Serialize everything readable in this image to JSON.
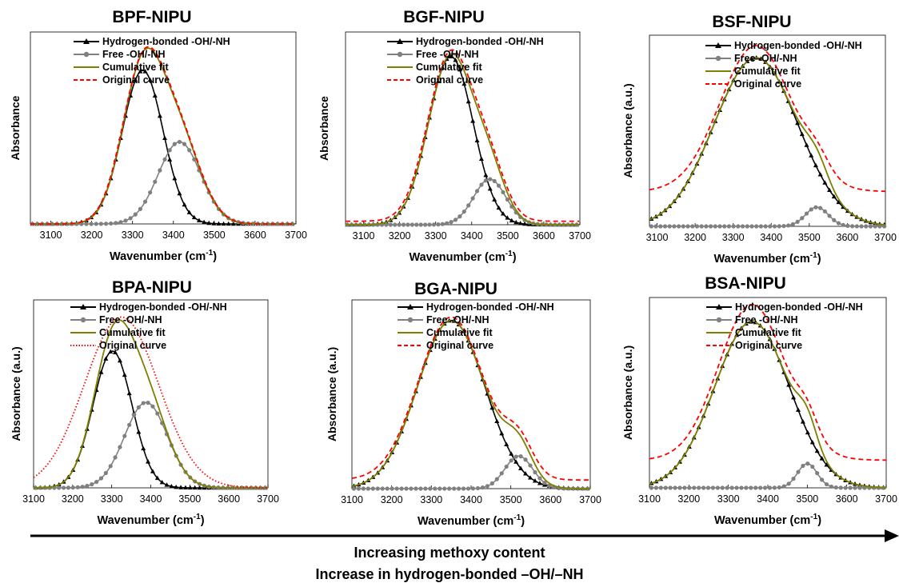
{
  "figure": {
    "caption_lines": [
      "Increasing methoxy content",
      "Increase in hydrogen-bonded –OH/–NH"
    ],
    "colors": {
      "h_bonded": "#000000",
      "free": "#808080",
      "cumulative": "#7f7f00",
      "original": "#ff0000"
    }
  },
  "chart_data": [
    {
      "type": "line",
      "title": "BPF-NIPU",
      "xlabel": "Wavenumber (cm",
      "xlabel_sup": "-1",
      "xlabel_end": ")",
      "ylabel": "Absorbance",
      "xlim": [
        3050,
        3700
      ],
      "ylim": [
        0,
        1.1
      ],
      "xticks": [
        3100,
        3200,
        3300,
        3400,
        3500,
        3600,
        3700
      ],
      "legend": [
        "Hydrogen-bonded -OH/-NH",
        "Free -OH/-NH",
        "Cumulative fit",
        "Original curve"
      ],
      "legend_position": "top-right",
      "series": [
        {
          "name": "Hydrogen-bonded -OH/-NH",
          "peaks": [
            {
              "center": 3325,
              "height": 0.88,
              "width": 50
            }
          ],
          "marker": "triangle",
          "color": "#000000"
        },
        {
          "name": "Free -OH/-NH",
          "peaks": [
            {
              "center": 3415,
              "height": 0.47,
              "width": 52
            }
          ],
          "marker": "circle",
          "color": "#808080"
        },
        {
          "name": "Cumulative fit",
          "peaks": [
            {
              "center": 3325,
              "height": 0.88,
              "width": 50
            },
            {
              "center": 3415,
              "height": 0.47,
              "width": 52
            }
          ],
          "marker": "none",
          "color": "#7f7f00"
        },
        {
          "name": "Original curve",
          "peaks": [
            {
              "center": 3325,
              "height": 0.88,
              "width": 51
            },
            {
              "center": 3415,
              "height": 0.47,
              "width": 53
            }
          ],
          "marker": "none",
          "dash": "dashed",
          "color": "#ff0000"
        }
      ]
    },
    {
      "type": "line",
      "title": "BGF-NIPU",
      "xlabel": "Wavenumber (cm",
      "xlabel_sup": "-1",
      "xlabel_end": ")",
      "ylabel": "Absorbance",
      "xlim": [
        3050,
        3700
      ],
      "ylim": [
        0,
        1.1
      ],
      "xticks": [
        3100,
        3200,
        3300,
        3400,
        3500,
        3600,
        3700
      ],
      "legend": [
        "Hydrogen-bonded -OH/-NH",
        "Free -OH/-NH",
        "Cumulative fit",
        "Original curve"
      ],
      "legend_position": "top-right",
      "series": [
        {
          "name": "Hydrogen-bonded -OH/-NH",
          "peaks": [
            {
              "center": 3342,
              "height": 0.96,
              "width": 62
            }
          ],
          "marker": "triangle",
          "color": "#000000"
        },
        {
          "name": "Free -OH/-NH",
          "peaks": [
            {
              "center": 3450,
              "height": 0.26,
              "width": 45
            }
          ],
          "marker": "circle",
          "color": "#808080"
        },
        {
          "name": "Cumulative fit",
          "peaks": [
            {
              "center": 3342,
              "height": 0.96,
              "width": 62
            },
            {
              "center": 3450,
              "height": 0.26,
              "width": 45
            }
          ],
          "marker": "none",
          "color": "#7f7f00"
        },
        {
          "name": "Original curve",
          "peaks": [
            {
              "center": 3342,
              "height": 0.96,
              "width": 63
            },
            {
              "center": 3450,
              "height": 0.26,
              "width": 46
            }
          ],
          "baseline": 0.02,
          "marker": "none",
          "dash": "dashed",
          "color": "#ff0000"
        }
      ]
    },
    {
      "type": "line",
      "title": "BSF-NIPU",
      "xlabel": "Wavenumber (cm",
      "xlabel_sup": "-1",
      "xlabel_end": ")",
      "ylabel": "Absorbance (a.u.)",
      "xlim": [
        3080,
        3700
      ],
      "ylim": [
        0,
        1.1
      ],
      "xticks": [
        3100,
        3200,
        3300,
        3400,
        3500,
        3600,
        3700
      ],
      "legend": [
        "Hydrogen-bonded -OH/-NH",
        "Free -OH/-NH",
        "Cumulative fit",
        "Original curve"
      ],
      "legend_position": "top-right",
      "series": [
        {
          "name": "Hydrogen-bonded -OH/-NH",
          "peaks": [
            {
              "center": 3360,
              "height": 0.97,
              "width": 110
            }
          ],
          "marker": "triangle",
          "color": "#000000"
        },
        {
          "name": "Free -OH/-NH",
          "peaks": [
            {
              "center": 3520,
              "height": 0.11,
              "width": 30
            }
          ],
          "marker": "circle",
          "color": "#808080"
        },
        {
          "name": "Cumulative fit",
          "peaks": [
            {
              "center": 3360,
              "height": 0.97,
              "width": 110
            },
            {
              "center": 3520,
              "height": 0.11,
              "width": 30
            }
          ],
          "marker": "none",
          "color": "#7f7f00"
        },
        {
          "name": "Original curve",
          "peaks": [
            {
              "center": 3360,
              "height": 0.84,
              "width": 95
            },
            {
              "center": 3520,
              "height": 0.09,
              "width": 32
            }
          ],
          "baseline": 0.2,
          "marker": "none",
          "dash": "dashed",
          "color": "#ff0000"
        }
      ]
    },
    {
      "type": "line",
      "title": "BPA-NIPU",
      "xlabel": "Wavenumber (cm",
      "xlabel_sup": "-1",
      "xlabel_end": ")",
      "ylabel": "Absorbance (a.u.)",
      "xlim": [
        3100,
        3700
      ],
      "ylim": [
        0,
        1.1
      ],
      "xticks": [
        3100,
        3200,
        3300,
        3400,
        3500,
        3600,
        3700
      ],
      "legend": [
        "Hydrogen-bonded -OH/-NH",
        "Free -OH/-NH",
        "Cumulative fit",
        "Original curve"
      ],
      "legend_position": "top-right",
      "series": [
        {
          "name": "Hydrogen-bonded -OH/-NH",
          "peaks": [
            {
              "center": 3302,
              "height": 0.8,
              "width": 50
            }
          ],
          "marker": "triangle",
          "color": "#000000"
        },
        {
          "name": "Free -OH/-NH",
          "peaks": [
            {
              "center": 3388,
              "height": 0.5,
              "width": 55
            }
          ],
          "marker": "circle",
          "color": "#808080"
        },
        {
          "name": "Cumulative fit",
          "peaks": [
            {
              "center": 3302,
              "height": 0.8,
              "width": 50
            },
            {
              "center": 3388,
              "height": 0.5,
              "width": 55
            }
          ],
          "marker": "none",
          "color": "#7f7f00"
        },
        {
          "name": "Original curve",
          "peaks": [
            {
              "center": 3325,
              "height": 1.0,
              "width": 95
            }
          ],
          "baseline": 0.0,
          "marker": "none",
          "dash": "dotted",
          "color": "#ff0000"
        }
      ]
    },
    {
      "type": "line",
      "title": "BGA-NIPU",
      "xlabel": "Wavenumber (cm",
      "xlabel_sup": "-1",
      "xlabel_end": ")",
      "ylabel": "Absorbance (a.u.)",
      "xlim": [
        3100,
        3700
      ],
      "ylim": [
        0,
        1.1
      ],
      "xticks": [
        3100,
        3200,
        3300,
        3400,
        3500,
        3600,
        3700
      ],
      "legend": [
        "Hydrogen-bonded -OH/-NH",
        "Free -OH/-NH",
        "Cumulative fit",
        "Original curve"
      ],
      "legend_position": "top-right",
      "series": [
        {
          "name": "Hydrogen-bonded -OH/-NH",
          "peaks": [
            {
              "center": 3350,
              "height": 0.98,
              "width": 85
            }
          ],
          "marker": "triangle",
          "color": "#000000"
        },
        {
          "name": "Free -OH/-NH",
          "peaks": [
            {
              "center": 3520,
              "height": 0.19,
              "width": 35
            }
          ],
          "marker": "circle",
          "color": "#808080"
        },
        {
          "name": "Cumulative fit",
          "peaks": [
            {
              "center": 3350,
              "height": 0.98,
              "width": 85
            },
            {
              "center": 3520,
              "height": 0.19,
              "width": 35
            }
          ],
          "marker": "none",
          "color": "#7f7f00"
        },
        {
          "name": "Original curve",
          "peaks": [
            {
              "center": 3350,
              "height": 0.95,
              "width": 83
            },
            {
              "center": 3520,
              "height": 0.19,
              "width": 36
            }
          ],
          "baseline": 0.05,
          "marker": "none",
          "dash": "dashed",
          "color": "#ff0000"
        }
      ]
    },
    {
      "type": "line",
      "title": "BSA-NIPU",
      "xlabel": "Wavenumber (cm",
      "xlabel_sup": "-1",
      "xlabel_end": ")",
      "ylabel": "Absorbance (a.u.)",
      "xlim": [
        3100,
        3700
      ],
      "ylim": [
        0,
        1.1
      ],
      "xticks": [
        3100,
        3200,
        3300,
        3400,
        3500,
        3600,
        3700
      ],
      "legend": [
        "Hydrogen-bonded -OH/-NH",
        "Free -OH/-NH",
        "Cumulative fit",
        "Original curve"
      ],
      "legend_position": "top-right",
      "series": [
        {
          "name": "Hydrogen-bonded -OH/-NH",
          "peaks": [
            {
              "center": 3360,
              "height": 0.96,
              "width": 95
            }
          ],
          "marker": "triangle",
          "color": "#000000"
        },
        {
          "name": "Free -OH/-NH",
          "peaks": [
            {
              "center": 3500,
              "height": 0.14,
              "width": 25
            }
          ],
          "marker": "circle",
          "color": "#808080"
        },
        {
          "name": "Cumulative fit",
          "peaks": [
            {
              "center": 3360,
              "height": 0.96,
              "width": 95
            },
            {
              "center": 3500,
              "height": 0.14,
              "width": 25
            }
          ],
          "marker": "none",
          "color": "#7f7f00"
        },
        {
          "name": "Original curve",
          "peaks": [
            {
              "center": 3360,
              "height": 0.9,
              "width": 85
            },
            {
              "center": 3500,
              "height": 0.12,
              "width": 27
            }
          ],
          "baseline": 0.16,
          "marker": "none",
          "dash": "dashed",
          "color": "#ff0000"
        }
      ]
    }
  ]
}
